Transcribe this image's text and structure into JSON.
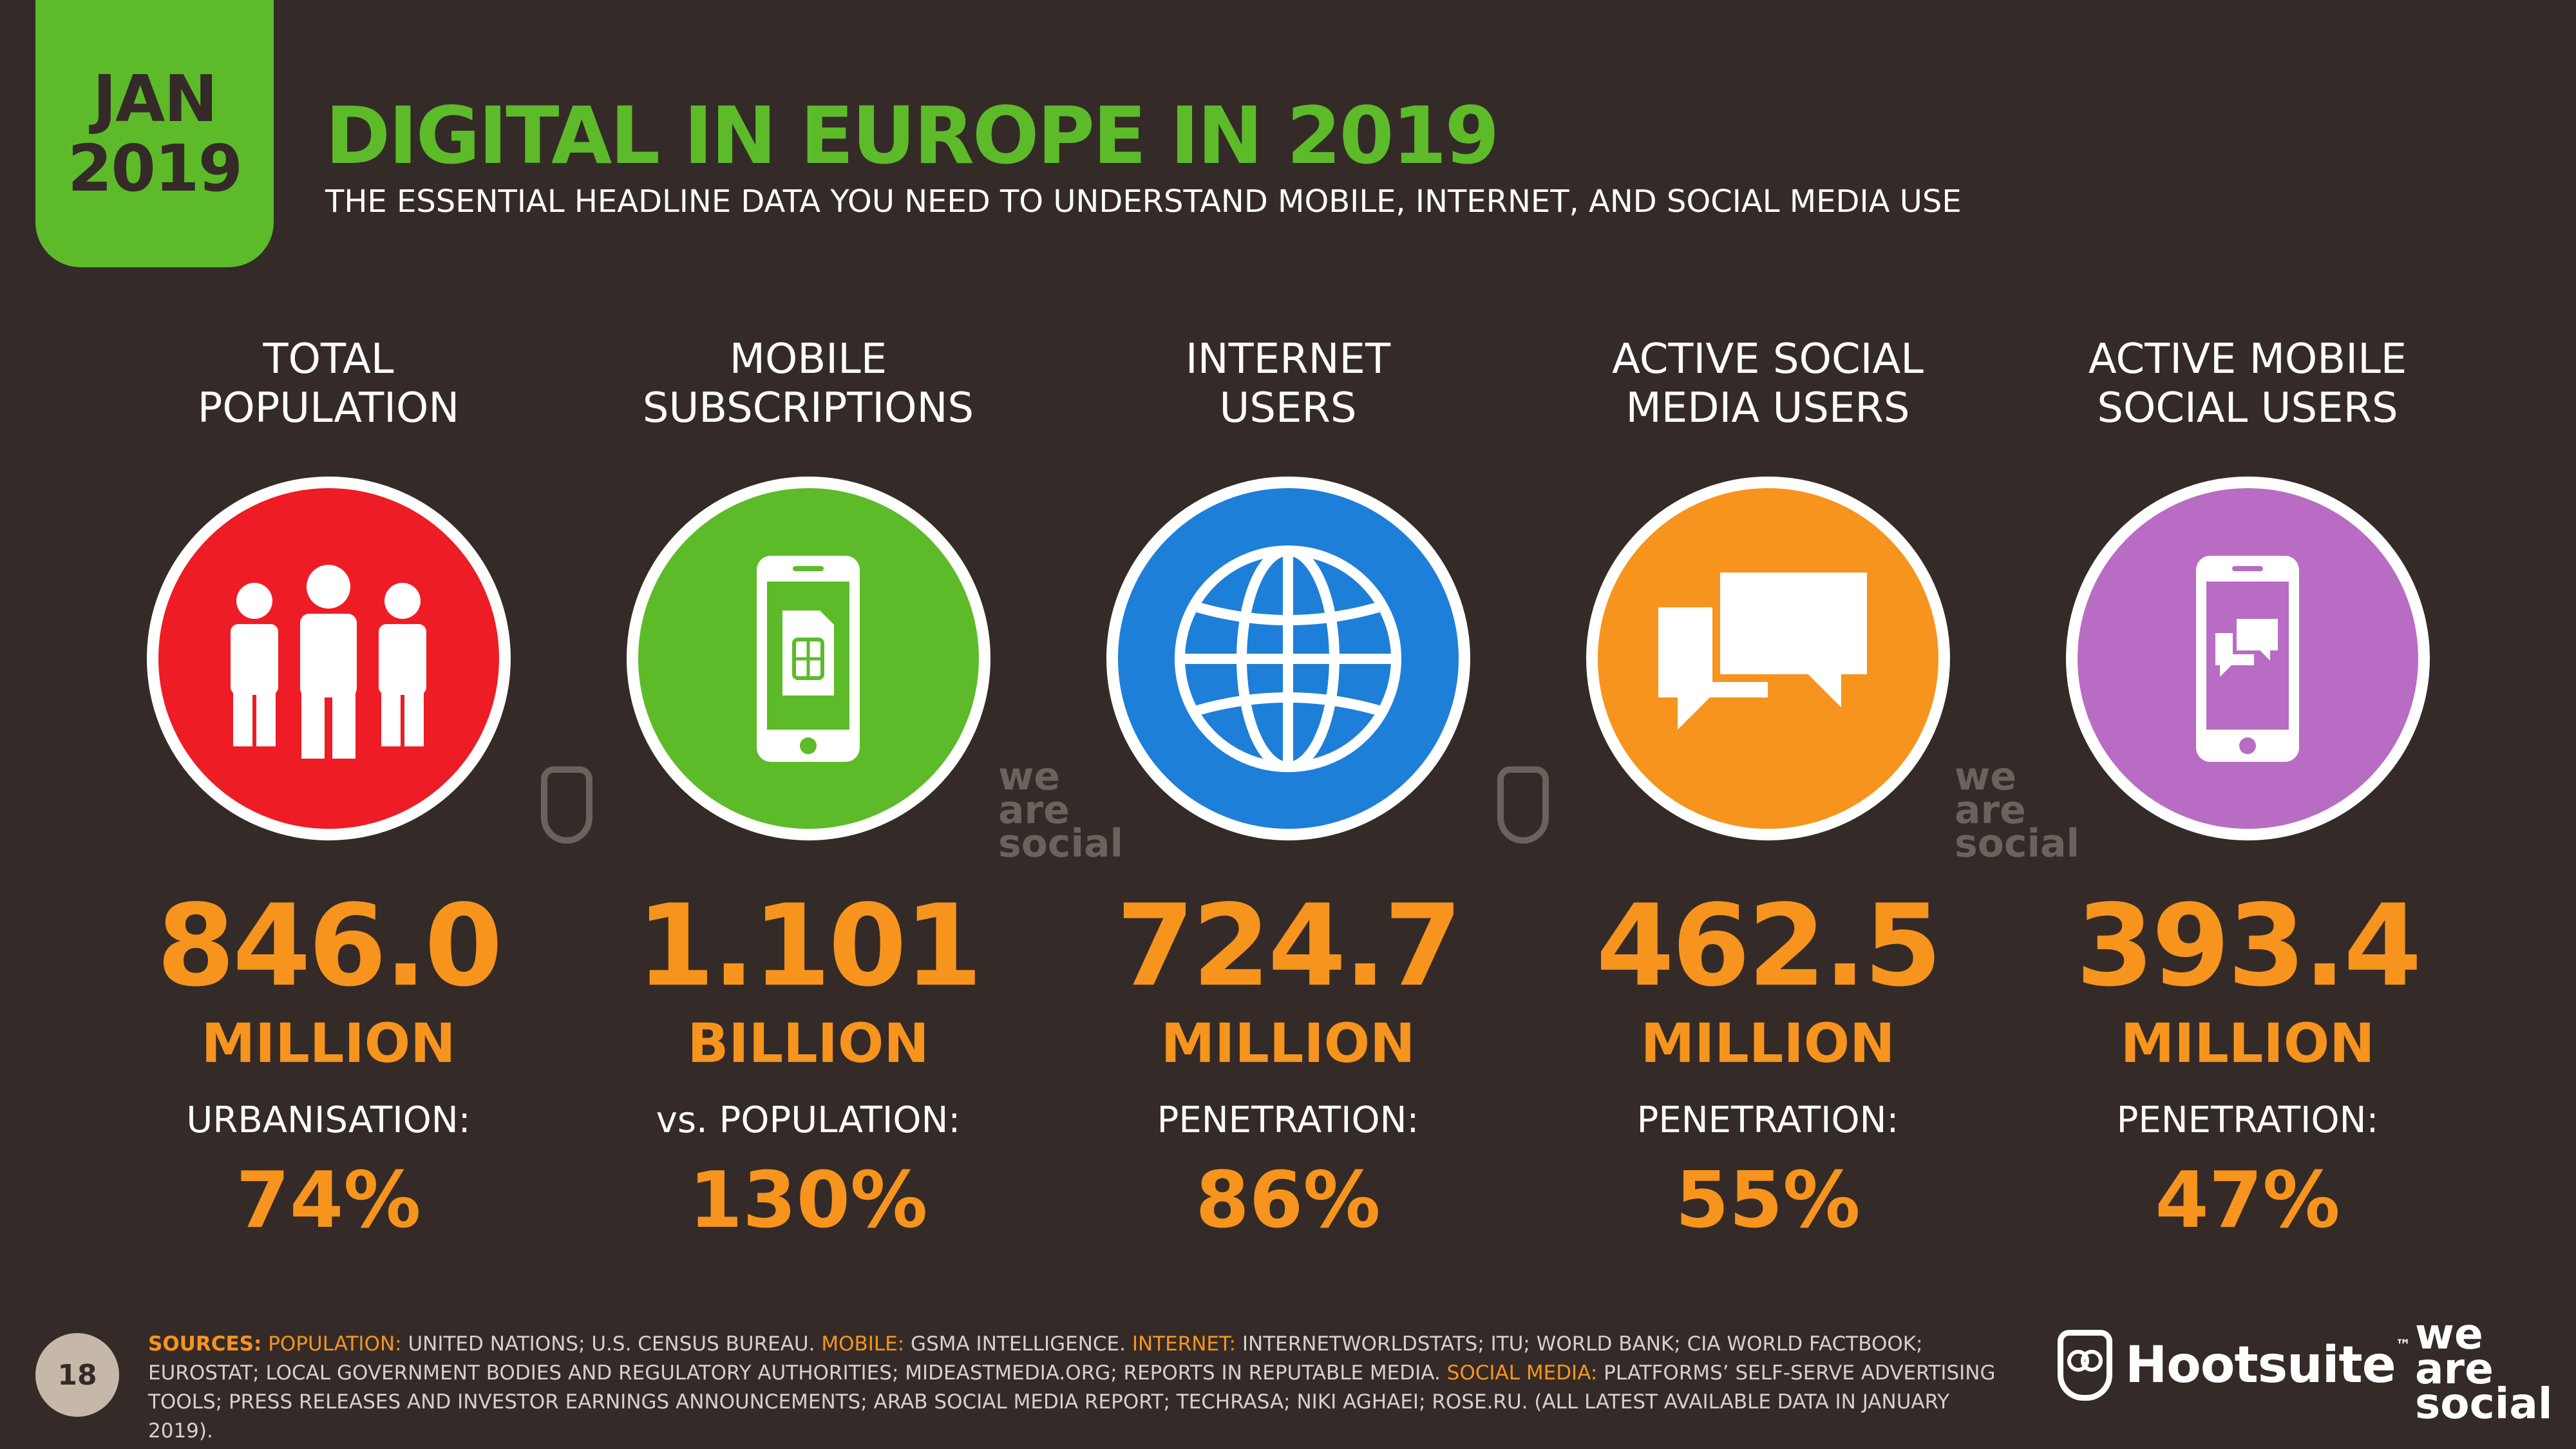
{
  "badge": {
    "month": "JAN",
    "year": "2019"
  },
  "header": {
    "title": "DIGITAL IN EUROPE IN 2019",
    "subtitle": "THE ESSENTIAL HEADLINE DATA YOU NEED TO UNDERSTAND MOBILE, INTERNET, AND SOCIAL MEDIA USE"
  },
  "stats": [
    {
      "heading1": "TOTAL",
      "heading2": "POPULATION",
      "icon": "people-icon",
      "color": "#ee1c25",
      "value": "846.0",
      "unit": "MILLION",
      "label": "URBANISATION:",
      "percent": "74%"
    },
    {
      "heading1": "MOBILE",
      "heading2": "SUBSCRIPTIONS",
      "icon": "mobile-sim-icon",
      "color": "#5dbb2a",
      "value": "1.101",
      "unit": "BILLION",
      "label": "vs. POPULATION:",
      "percent": "130%"
    },
    {
      "heading1": "INTERNET",
      "heading2": "USERS",
      "icon": "globe-icon",
      "color": "#1e7fd9",
      "value": "724.7",
      "unit": "MILLION",
      "label": "PENETRATION:",
      "percent": "86%"
    },
    {
      "heading1": "ACTIVE SOCIAL",
      "heading2": "MEDIA USERS",
      "icon": "chat-bubbles-icon",
      "color": "#f7941d",
      "value": "462.5",
      "unit": "MILLION",
      "label": "PENETRATION:",
      "percent": "55%"
    },
    {
      "heading1": "ACTIVE MOBILE",
      "heading2": "SOCIAL USERS",
      "icon": "mobile-chat-icon",
      "color": "#b96cc4",
      "value": "393.4",
      "unit": "MILLION",
      "label": "PENETRATION:",
      "percent": "47%"
    }
  ],
  "watermarks": {
    "we": "we",
    "are": "are",
    "social": "social"
  },
  "footer": {
    "page_number": "18",
    "sources_label": "SOURCES:",
    "population_label": "POPULATION:",
    "population_text": "UNITED NATIONS; U.S. CENSUS BUREAU.",
    "mobile_label": "MOBILE:",
    "mobile_text": "GSMA INTELLIGENCE.",
    "internet_label": "INTERNET:",
    "internet_text": "INTERNETWORLDSTATS; ITU; WORLD BANK; CIA WORLD FACTBOOK; EUROSTAT; LOCAL GOVERNMENT BODIES AND REGULATORY AUTHORITIES; MIDEASTMEDIA.ORG; REPORTS IN REPUTABLE MEDIA.",
    "social_label": "SOCIAL MEDIA:",
    "social_text": "PLATFORMS’ SELF-SERVE ADVERTISING TOOLS; PRESS RELEASES AND INVESTOR EARNINGS ANNOUNCEMENTS; ARAB SOCIAL MEDIA REPORT; TECHRASA; NIKI AGHAEI; ROSE.RU. (ALL LATEST AVAILABLE DATA IN JANUARY 2019).",
    "hootsuite": "Hootsuite",
    "tm": "™",
    "we": "we",
    "are": "are",
    "social": "social"
  }
}
